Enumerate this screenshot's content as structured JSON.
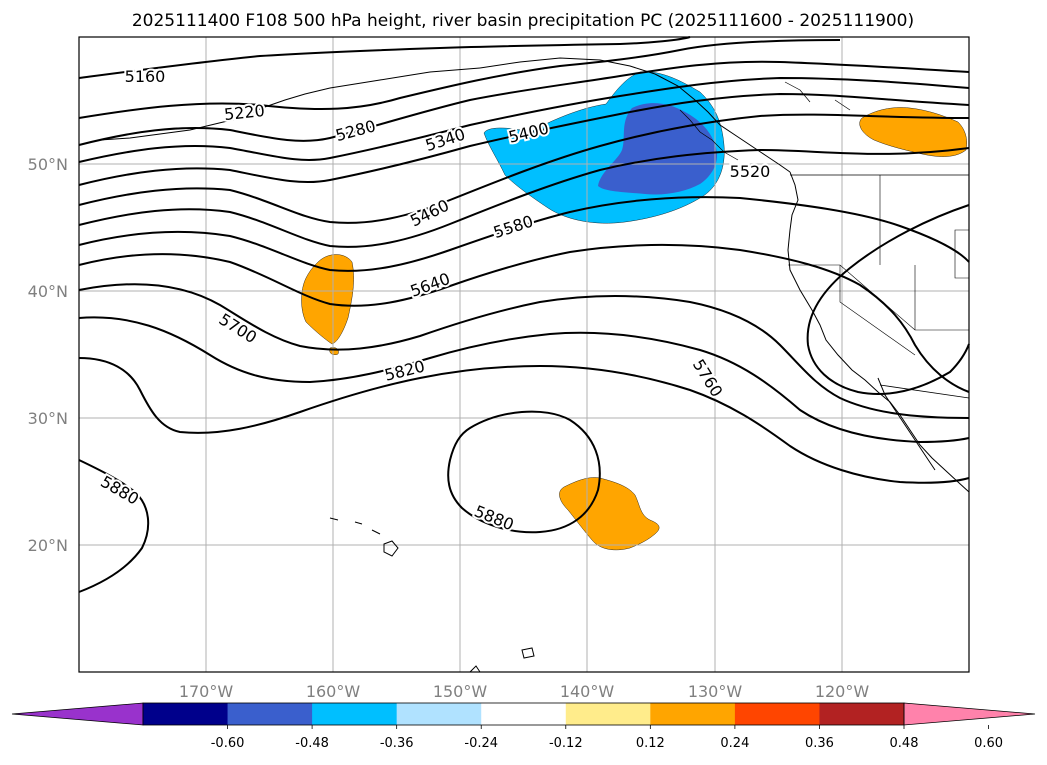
{
  "title": "2025111400 F108 500 hPa height, river basin precipitation PC (2025111600 - 2025111900)",
  "map": {
    "projection": "PlateCarree",
    "lon_range": [
      -180,
      -110
    ],
    "lat_range": [
      10,
      60
    ],
    "gridlines": true,
    "lon_ticks": [
      "170°W",
      "160°W",
      "150°W",
      "140°W",
      "130°W",
      "120°W"
    ],
    "lat_ticks": [
      "50°N",
      "40°N",
      "30°N",
      "20°N"
    ],
    "colors": {
      "contour": "#000000",
      "coast": "#000000",
      "grid": "#b0b0b0",
      "positive_0_24": "#ffa500",
      "negative_0_24": "#00bfff",
      "negative_0_36": "#3a5fcd"
    }
  },
  "contour_labels": [
    "5160",
    "5220",
    "5280",
    "5340",
    "5400",
    "5460",
    "5520",
    "5580",
    "5640",
    "5700",
    "5760",
    "5820",
    "5880",
    "5880"
  ],
  "colorbar": {
    "levels": [
      "-0.60",
      "-0.48",
      "-0.36",
      "-0.24",
      "-0.12",
      "0.12",
      "0.24",
      "0.36",
      "0.48",
      "0.60"
    ],
    "colors": [
      "#9932cc",
      "#00008b",
      "#3a5fcd",
      "#00bfff",
      "#b0e2ff",
      "#ffffff",
      "#ffec8b",
      "#ffa500",
      "#ff4500",
      "#b22222",
      "#ff82ab"
    ],
    "extend": "both"
  },
  "chart_data": {
    "type": "map",
    "title": "2025111400 F108 500 hPa height, river basin precipitation PC (2025111600 - 2025111900)",
    "height_contours_gpm": [
      5160,
      5220,
      5280,
      5340,
      5400,
      5460,
      5520,
      5580,
      5640,
      5700,
      5760,
      5820,
      5880
    ],
    "precip_pc_regions": [
      {
        "value_range": [
          0.24,
          0.36
        ],
        "region": "central North Pacific near 40N 160W"
      },
      {
        "value_range": [
          0.24,
          0.36
        ],
        "region": "subtropical Pacific near 22N 138W"
      },
      {
        "value_range": [
          0.24,
          0.36
        ],
        "region": "south-central Canada near 52N 115W"
      },
      {
        "value_range": [
          -0.36,
          -0.24
        ],
        "region": "Gulf of Alaska / Pacific Northwest"
      },
      {
        "value_range": [
          -0.48,
          -0.36
        ],
        "region": "British Columbia coast"
      }
    ]
  }
}
